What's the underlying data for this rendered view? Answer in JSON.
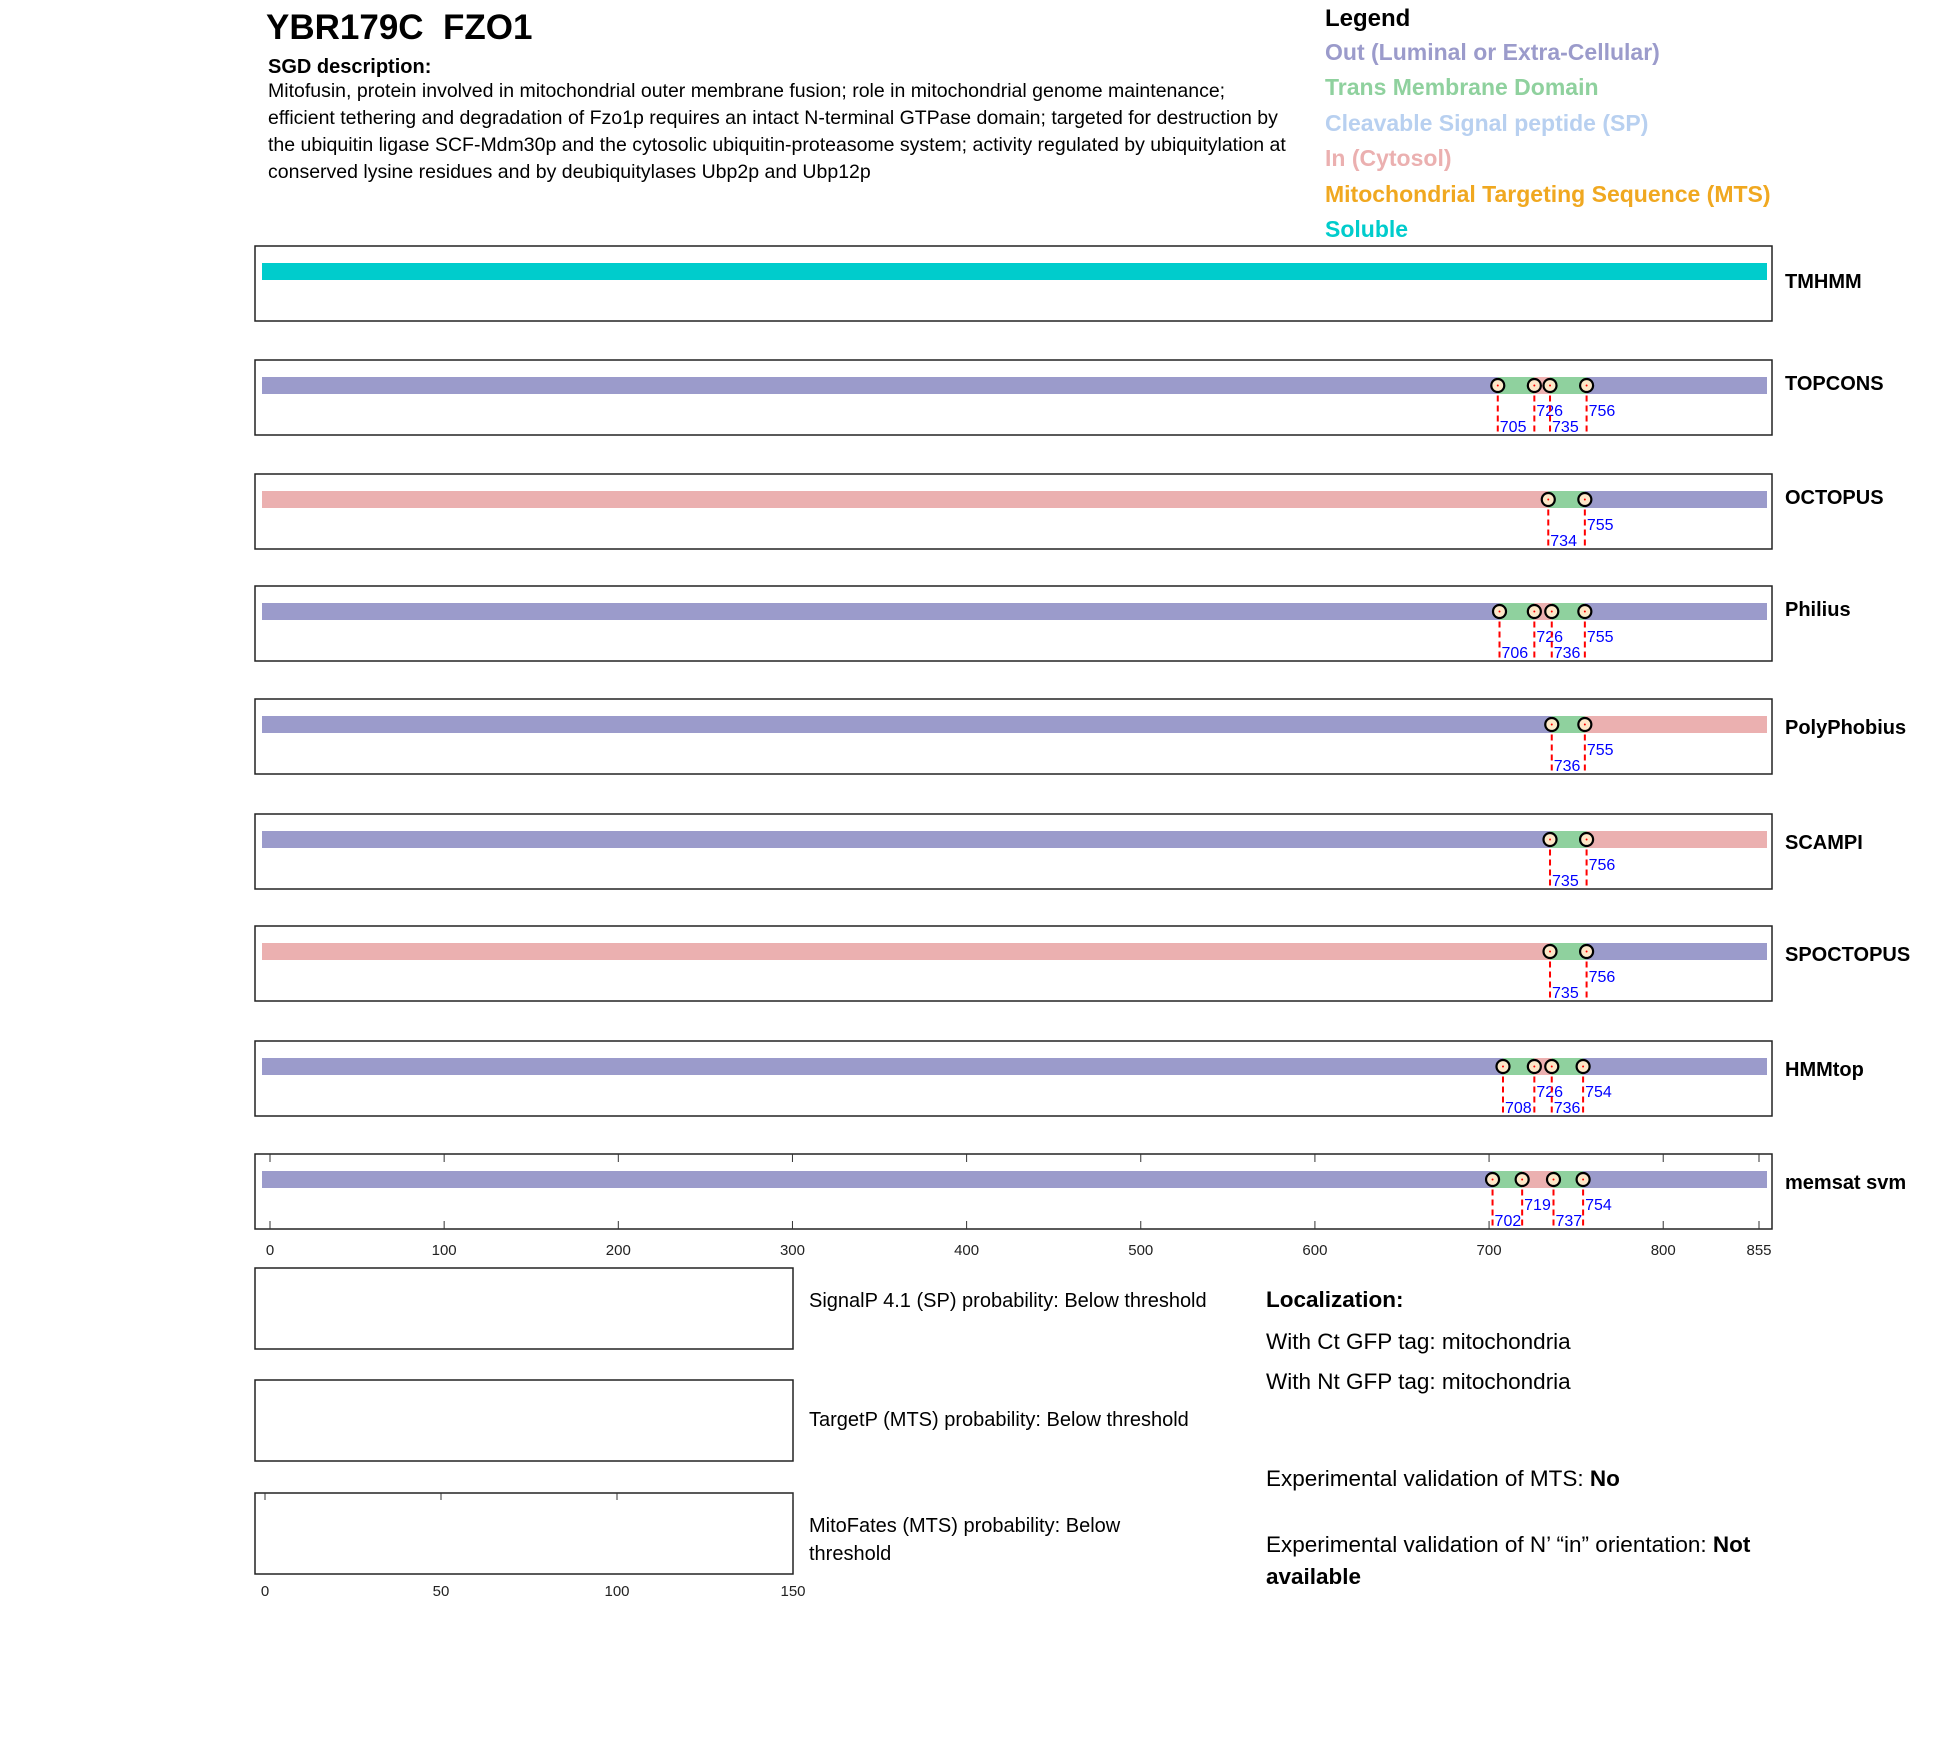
{
  "header": {
    "title": "YBR179C  FZO1",
    "sgd_heading": "SGD description:",
    "sgd_text": "Mitofusin, protein involved in mitochondrial outer membrane fusion; role in mitochondrial genome maintenance; efficient tethering and degradation of Fzo1p requires an intact N-terminal GTPase domain; targeted for destruction by the ubiquitin ligase SCF-Mdm30p and the cytosolic ubiquitin-proteasome system; activity regulated by ubiquitylation at conserved lysine residues and by  deubiquitylases Ubp2p and Ubp12p"
  },
  "legend": {
    "title": "Legend",
    "items": [
      {
        "label": "Out (Luminal or Extra-Cellular)",
        "color": "#9b9bcb"
      },
      {
        "label": "Trans Membrane Domain",
        "color": "#8fd19e"
      },
      {
        "label": "Cleavable Signal peptide (SP)",
        "color": "#b8d0f0"
      },
      {
        "label": "In (Cytosol)",
        "color": "#ebb0b0"
      },
      {
        "label": "Mitochondrial Targeting Sequence (MTS)",
        "color": "#f0a820"
      },
      {
        "label": "Soluble",
        "color": "#00cccc"
      }
    ]
  },
  "colors": {
    "out": "#9b9bcb",
    "tm": "#8fd19e",
    "in": "#ebb0b0",
    "soluble": "#00cccc",
    "marker_line": "#ff0000",
    "marker_label": "#0000ff"
  },
  "chart_data": {
    "type": "track",
    "xlim": [
      0,
      855
    ],
    "x_ticks": [
      0,
      100,
      200,
      300,
      400,
      500,
      600,
      700,
      800,
      855
    ],
    "tracks": [
      {
        "name": "TMHMM",
        "segments": [
          [
            "soluble",
            1,
            855
          ]
        ],
        "markers": []
      },
      {
        "name": "TOPCONS",
        "segments": [
          [
            "out",
            1,
            705
          ],
          [
            "tm",
            705,
            726
          ],
          [
            "in",
            726,
            735
          ],
          [
            "tm",
            735,
            756
          ],
          [
            "out",
            756,
            855
          ]
        ],
        "markers": [
          705,
          726,
          735,
          756
        ]
      },
      {
        "name": "OCTOPUS",
        "segments": [
          [
            "in",
            1,
            734
          ],
          [
            "tm",
            734,
            755
          ],
          [
            "out",
            755,
            855
          ]
        ],
        "markers": [
          734,
          755
        ]
      },
      {
        "name": "Philius",
        "segments": [
          [
            "out",
            1,
            706
          ],
          [
            "tm",
            706,
            726
          ],
          [
            "in",
            726,
            736
          ],
          [
            "tm",
            736,
            755
          ],
          [
            "out",
            755,
            855
          ]
        ],
        "markers": [
          706,
          726,
          736,
          755
        ]
      },
      {
        "name": "PolyPhobius",
        "segments": [
          [
            "out",
            1,
            736
          ],
          [
            "tm",
            736,
            755
          ],
          [
            "in",
            755,
            855
          ]
        ],
        "markers": [
          736,
          755
        ]
      },
      {
        "name": "SCAMPI",
        "segments": [
          [
            "out",
            1,
            735
          ],
          [
            "tm",
            735,
            756
          ],
          [
            "in",
            756,
            855
          ]
        ],
        "markers": [
          735,
          756
        ]
      },
      {
        "name": "SPOCTOPUS",
        "segments": [
          [
            "in",
            1,
            735
          ],
          [
            "tm",
            735,
            756
          ],
          [
            "out",
            756,
            855
          ]
        ],
        "markers": [
          735,
          756
        ]
      },
      {
        "name": "HMMtop",
        "segments": [
          [
            "out",
            1,
            708
          ],
          [
            "tm",
            708,
            726
          ],
          [
            "in",
            726,
            736
          ],
          [
            "tm",
            736,
            754
          ],
          [
            "out",
            754,
            855
          ]
        ],
        "markers": [
          708,
          726,
          736,
          754
        ]
      },
      {
        "name": "memsat svm",
        "segments": [
          [
            "out",
            1,
            702
          ],
          [
            "tm",
            702,
            719
          ],
          [
            "in",
            719,
            737
          ],
          [
            "tm",
            737,
            754
          ],
          [
            "out",
            754,
            855
          ]
        ],
        "markers": [
          702,
          719,
          737,
          754
        ]
      }
    ],
    "prob_xlim": [
      0,
      150
    ],
    "prob_ticks": [
      0,
      50,
      100,
      150
    ]
  },
  "predictions": [
    {
      "text": "SignalP 4.1 (SP) probability: Below threshold"
    },
    {
      "text": "TargetP (MTS) probability: Below threshold"
    },
    {
      "text": "MitoFates (MTS) probability: Below threshold"
    }
  ],
  "localization": {
    "heading": "Localization:",
    "ct": "With Ct GFP tag: mitochondria",
    "nt": "With Nt GFP tag: mitochondria",
    "mts_label": "Experimental validation of MTS: ",
    "mts_value": "No",
    "nin_label": "Experimental validation of N’ “in” orientation: ",
    "nin_value": "Not available"
  }
}
